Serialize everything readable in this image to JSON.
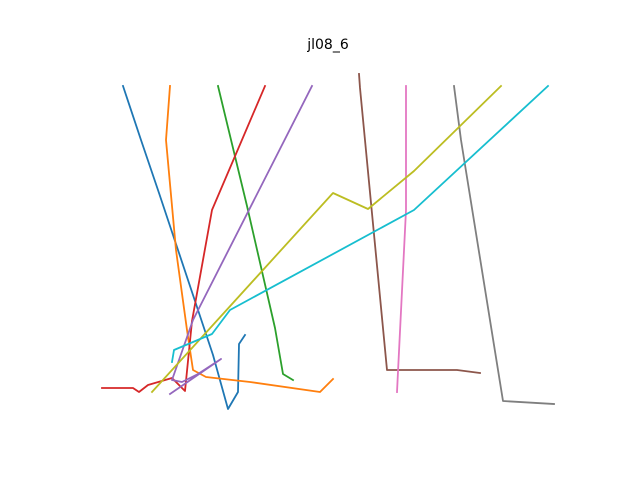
{
  "chart_data": {
    "type": "line",
    "title": "jl08_6",
    "xlabel": "",
    "ylabel": "",
    "axes_visible": false,
    "grid": false,
    "legend": "none",
    "series": [
      {
        "color": "#1f77b4",
        "x": [
          123,
          141,
          159,
          177,
          195,
          213,
          228,
          238,
          239,
          245
        ],
        "y": [
          86,
          140,
          193,
          247,
          301,
          355,
          409,
          392,
          344,
          335
        ]
      },
      {
        "color": "#ff7f0e",
        "x": [
          170,
          166,
          176,
          187,
          193,
          206,
          250,
          320,
          333
        ],
        "y": [
          86,
          140,
          250,
          330,
          370,
          377,
          382,
          392,
          379
        ]
      },
      {
        "color": "#2ca02c",
        "x": [
          218,
          247,
          275,
          283,
          293
        ],
        "y": [
          86,
          206,
          328,
          374,
          380
        ]
      },
      {
        "color": "#d62728",
        "x": [
          265,
          212,
          192,
          185,
          172,
          148,
          139,
          133,
          102
        ],
        "y": [
          86,
          210,
          321,
          391,
          378,
          385,
          392,
          388,
          388
        ]
      },
      {
        "color": "#9467bd",
        "x": [
          312,
          193,
          172,
          182,
          198,
          221,
          170
        ],
        "y": [
          86,
          320,
          380,
          382,
          374,
          359,
          394
        ]
      },
      {
        "color": "#8c564b",
        "x": [
          359,
          360,
          387,
          457,
          480
        ],
        "y": [
          74,
          88,
          370,
          370,
          373
        ]
      },
      {
        "color": "#e377c2",
        "x": [
          406,
          406,
          397
        ],
        "y": [
          86,
          210,
          392
        ]
      },
      {
        "color": "#7f7f7f",
        "x": [
          454,
          461,
          503,
          554
        ],
        "y": [
          86,
          140,
          401,
          404
        ]
      },
      {
        "color": "#bcbd22",
        "x": [
          501,
          414,
          368,
          333,
          152
        ],
        "y": [
          86,
          171,
          209,
          193,
          392
        ]
      },
      {
        "color": "#17becf",
        "x": [
          548,
          414,
          230,
          212,
          174,
          172
        ],
        "y": [
          86,
          210,
          310,
          334,
          350,
          362
        ]
      }
    ]
  }
}
